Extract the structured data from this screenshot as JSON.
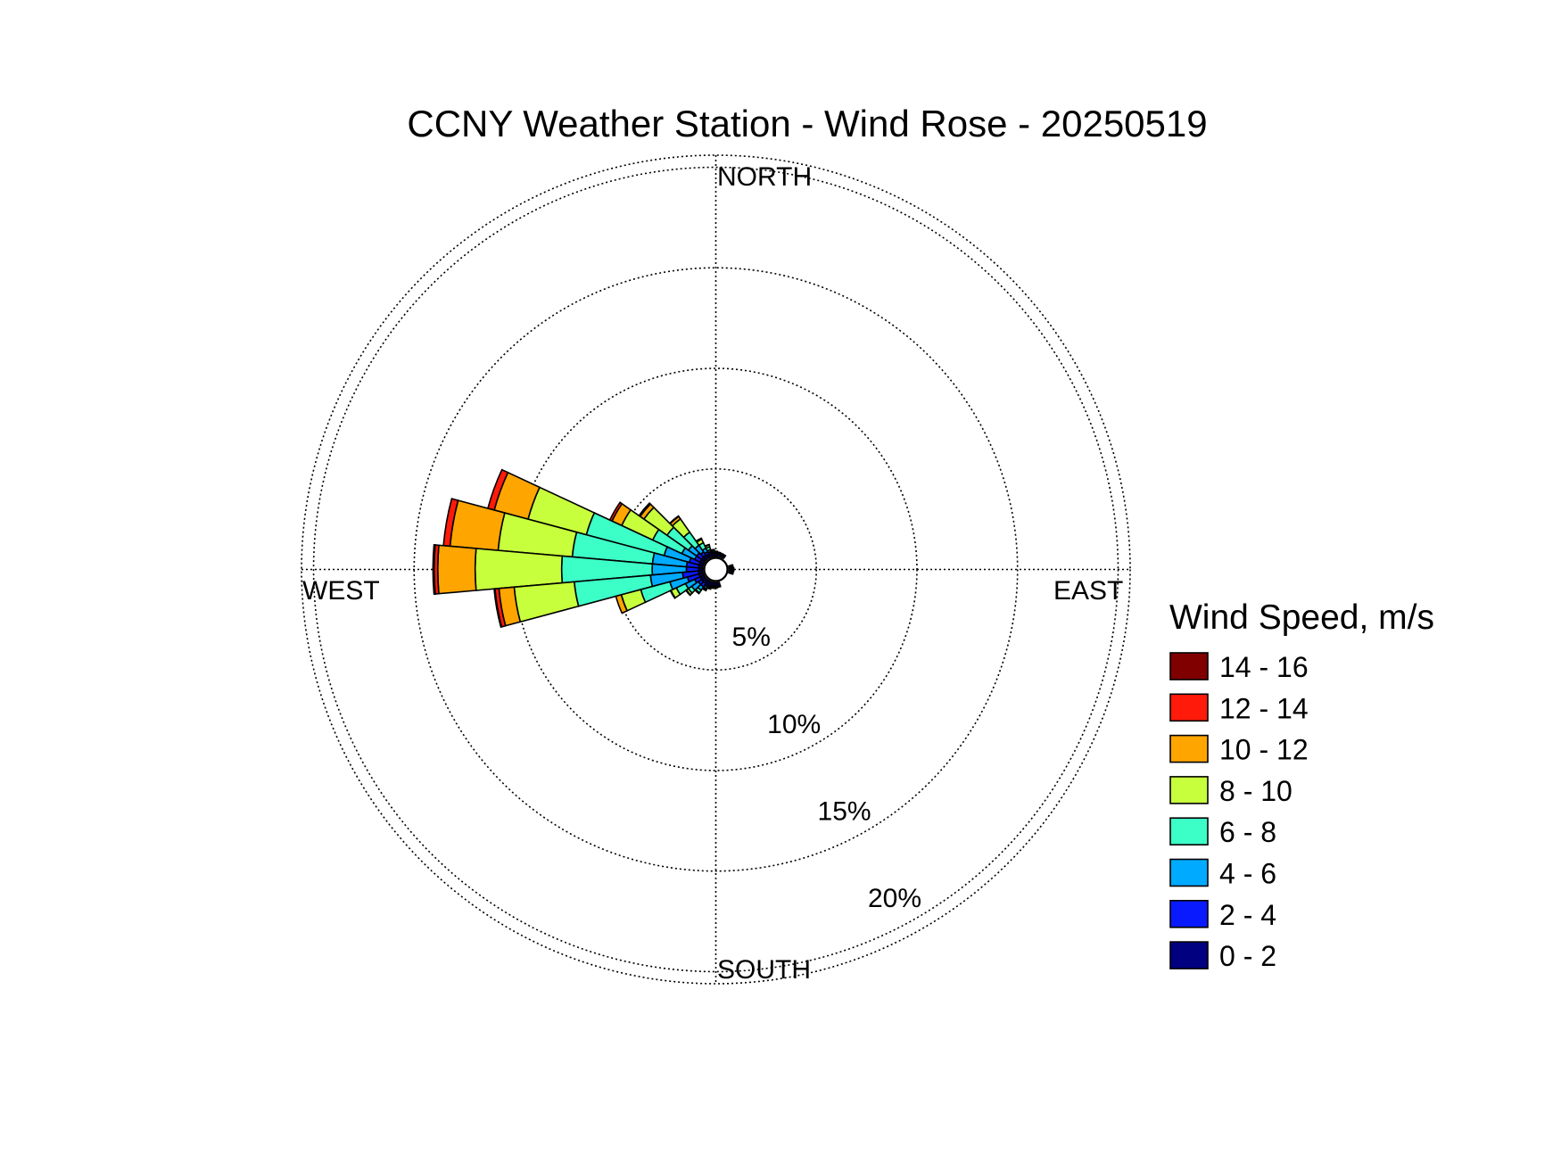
{
  "chart_data": {
    "type": "wind-rose",
    "title": "CCNY Weather Station - Wind Rose - 20250519",
    "direction_labels": {
      "north": "NORTH",
      "east": "EAST",
      "south": "SOUTH",
      "west": "WEST"
    },
    "radial_unit": "%",
    "radial_ticks": [
      {
        "value": 5,
        "label": "5%"
      },
      {
        "value": 10,
        "label": "10%"
      },
      {
        "value": 15,
        "label": "15%"
      },
      {
        "value": 20,
        "label": "20%"
      }
    ],
    "rlim": [
      0,
      20.6
    ],
    "grid": true,
    "sectors": 36,
    "legend": {
      "title": "Wind Speed, m/s",
      "placement": "right",
      "bins": [
        {
          "label": "14 - 16",
          "color": "#800000"
        },
        {
          "label": "12 - 14",
          "color": "#ff1a0a"
        },
        {
          "label": "10 - 12",
          "color": "#ffa500"
        },
        {
          "label": "8 - 10",
          "color": "#c8ff3c"
        },
        {
          "label": "6 - 8",
          "color": "#3cffc8"
        },
        {
          "label": "4 - 6",
          "color": "#00aaff"
        },
        {
          "label": "2 - 4",
          "color": "#0a1aff"
        },
        {
          "label": "0 - 2",
          "color": "#000080"
        }
      ]
    },
    "stack_order_inner_to_outer": [
      "0 - 2",
      "2 - 4",
      "4 - 6",
      "6 - 8",
      "8 - 10",
      "10 - 12",
      "12 - 14",
      "14 - 16"
    ],
    "series": [
      {
        "direction_deg": 350,
        "cumulative_percent": [
          0.15,
          0.2,
          0.25,
          0.3,
          0.32,
          0.33,
          0.33,
          0.33
        ]
      },
      {
        "direction_deg": 340,
        "cumulative_percent": [
          0.15,
          0.25,
          0.35,
          0.5,
          0.6,
          0.62,
          0.62,
          0.62
        ]
      },
      {
        "direction_deg": 330,
        "cumulative_percent": [
          0.15,
          0.3,
          0.5,
          0.8,
          1.0,
          1.05,
          1.05,
          1.05
        ]
      },
      {
        "direction_deg": 320,
        "cumulative_percent": [
          0.2,
          0.4,
          0.8,
          1.6,
          2.4,
          2.55,
          2.58,
          2.58
        ]
      },
      {
        "direction_deg": 310,
        "cumulative_percent": [
          0.2,
          0.5,
          1.0,
          2.3,
          3.7,
          3.93,
          4.0,
          4.0
        ]
      },
      {
        "direction_deg": 300,
        "cumulative_percent": [
          0.2,
          0.5,
          1.2,
          2.8,
          4.5,
          5.03,
          5.15,
          5.15
        ]
      },
      {
        "direction_deg": 290,
        "cumulative_percent": [
          0.2,
          0.7,
          2.0,
          6.0,
          9.0,
          10.74,
          11.07,
          11.07
        ]
      },
      {
        "direction_deg": 280,
        "cumulative_percent": [
          0.2,
          0.8,
          2.5,
          6.5,
          10.2,
          12.6,
          12.93,
          12.93
        ]
      },
      {
        "direction_deg": 270,
        "cumulative_percent": [
          0.2,
          0.8,
          2.5,
          7.0,
          11.3,
          13.16,
          13.34,
          13.4
        ]
      },
      {
        "direction_deg": 260,
        "cumulative_percent": [
          0.2,
          1.0,
          2.6,
          6.4,
          9.4,
          10.16,
          10.36,
          10.4
        ]
      },
      {
        "direction_deg": 250,
        "cumulative_percent": [
          0.2,
          0.8,
          1.7,
          3.2,
          4.2,
          4.48,
          4.48,
          4.48
        ]
      },
      {
        "direction_deg": 240,
        "cumulative_percent": [
          0.2,
          0.5,
          1.0,
          1.5,
          1.8,
          1.83,
          1.83,
          1.83
        ]
      },
      {
        "direction_deg": 230,
        "cumulative_percent": [
          0.2,
          0.4,
          0.8,
          1.0,
          1.12,
          1.15,
          1.15,
          1.15
        ]
      },
      {
        "direction_deg": 220,
        "cumulative_percent": [
          0.2,
          0.4,
          0.6,
          0.75,
          0.8,
          0.8,
          0.8,
          0.8
        ]
      },
      {
        "direction_deg": 210,
        "cumulative_percent": [
          0.2,
          0.3,
          0.4,
          0.45,
          0.5,
          0.5,
          0.5,
          0.5
        ]
      },
      {
        "direction_deg": 200,
        "cumulative_percent": [
          0.2,
          0.25,
          0.3,
          0.33,
          0.35,
          0.35,
          0.35,
          0.35
        ]
      },
      {
        "direction_deg": 190,
        "cumulative_percent": [
          0.15,
          0.2,
          0.25,
          0.27,
          0.28,
          0.28,
          0.28,
          0.28
        ]
      },
      {
        "direction_deg": 180,
        "cumulative_percent": [
          0.15,
          0.2,
          0.22,
          0.24,
          0.25,
          0.25,
          0.25,
          0.25
        ]
      },
      {
        "direction_deg": 170,
        "cumulative_percent": [
          0.15,
          0.18,
          0.2,
          0.21,
          0.22,
          0.22,
          0.22,
          0.22
        ]
      },
      {
        "direction_deg": 100,
        "cumulative_percent": [
          0.1,
          0.15,
          0.18,
          0.2,
          0.21,
          0.21,
          0.21,
          0.21
        ]
      },
      {
        "direction_deg": 90,
        "cumulative_percent": [
          0.1,
          0.16,
          0.2,
          0.22,
          0.23,
          0.23,
          0.23,
          0.23
        ]
      },
      {
        "direction_deg": 80,
        "cumulative_percent": [
          0.1,
          0.15,
          0.18,
          0.2,
          0.2,
          0.2,
          0.2,
          0.2
        ]
      },
      {
        "direction_deg": 30,
        "cumulative_percent": [
          0.1,
          0.13,
          0.15,
          0.16,
          0.17,
          0.17,
          0.17,
          0.17
        ]
      },
      {
        "direction_deg": 20,
        "cumulative_percent": [
          0.1,
          0.13,
          0.15,
          0.17,
          0.18,
          0.18,
          0.18,
          0.18
        ]
      },
      {
        "direction_deg": 10,
        "cumulative_percent": [
          0.12,
          0.15,
          0.17,
          0.19,
          0.2,
          0.2,
          0.2,
          0.2
        ]
      },
      {
        "direction_deg": 0,
        "cumulative_percent": [
          0.12,
          0.16,
          0.19,
          0.22,
          0.24,
          0.24,
          0.24,
          0.24
        ]
      }
    ]
  }
}
